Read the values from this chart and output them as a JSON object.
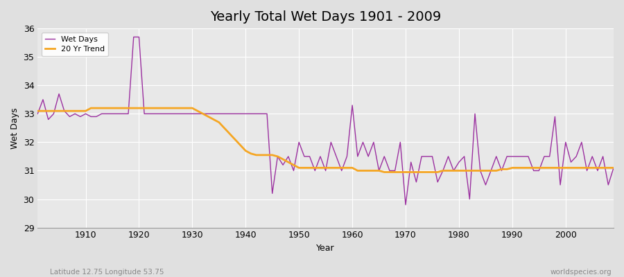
{
  "title": "Yearly Total Wet Days 1901 - 2009",
  "xlabel": "Year",
  "ylabel": "Wet Days",
  "ylim": [
    29,
    36
  ],
  "xlim": [
    1901,
    2009
  ],
  "yticks": [
    29,
    30,
    31,
    32,
    33,
    34,
    35,
    36
  ],
  "xticks": [
    1910,
    1920,
    1930,
    1940,
    1950,
    1960,
    1970,
    1980,
    1990,
    2000
  ],
  "background_color": "#e0e0e0",
  "plot_bg_color": "#e8e8e8",
  "wet_days_color": "#9b30a0",
  "trend_color": "#f5a623",
  "title_fontsize": 14,
  "axis_fontsize": 9,
  "bottom_left_text": "Latitude 12.75 Longitude 53.75",
  "bottom_right_text": "worldspecies.org",
  "years": [
    1901,
    1902,
    1903,
    1904,
    1905,
    1906,
    1907,
    1908,
    1909,
    1910,
    1911,
    1912,
    1913,
    1914,
    1915,
    1916,
    1917,
    1918,
    1919,
    1920,
    1921,
    1922,
    1923,
    1924,
    1925,
    1926,
    1927,
    1928,
    1929,
    1930,
    1931,
    1932,
    1933,
    1934,
    1935,
    1936,
    1937,
    1938,
    1939,
    1940,
    1941,
    1942,
    1943,
    1944,
    1945,
    1946,
    1947,
    1948,
    1949,
    1950,
    1951,
    1952,
    1953,
    1954,
    1955,
    1956,
    1957,
    1958,
    1959,
    1960,
    1961,
    1962,
    1963,
    1964,
    1965,
    1966,
    1967,
    1968,
    1969,
    1970,
    1971,
    1972,
    1973,
    1974,
    1975,
    1976,
    1977,
    1978,
    1979,
    1980,
    1981,
    1982,
    1983,
    1984,
    1985,
    1986,
    1987,
    1988,
    1989,
    1990,
    1991,
    1992,
    1993,
    1994,
    1995,
    1996,
    1997,
    1998,
    1999,
    2000,
    2001,
    2002,
    2003,
    2004,
    2005,
    2006,
    2007,
    2008,
    2009
  ],
  "wet_days": [
    33.0,
    33.5,
    32.8,
    33.0,
    33.7,
    33.1,
    32.9,
    33.0,
    32.9,
    33.0,
    32.9,
    32.9,
    33.0,
    33.0,
    33.0,
    33.0,
    33.0,
    33.0,
    35.7,
    35.7,
    33.0,
    33.0,
    33.0,
    33.0,
    33.0,
    33.0,
    33.0,
    33.0,
    33.0,
    33.0,
    33.0,
    33.0,
    33.0,
    33.0,
    33.0,
    33.0,
    33.0,
    33.0,
    33.0,
    33.0,
    33.0,
    33.0,
    33.0,
    33.0,
    30.2,
    31.5,
    31.2,
    31.5,
    31.0,
    32.0,
    31.5,
    31.5,
    31.0,
    31.5,
    31.0,
    32.0,
    31.5,
    31.0,
    31.5,
    33.3,
    31.5,
    32.0,
    31.5,
    32.0,
    31.0,
    31.5,
    31.0,
    31.0,
    32.0,
    29.8,
    31.3,
    30.6,
    31.5,
    31.5,
    31.5,
    30.6,
    31.0,
    31.5,
    31.0,
    31.3,
    31.5,
    30.0,
    33.0,
    31.0,
    30.5,
    31.0,
    31.5,
    31.0,
    31.5,
    31.5,
    31.5,
    31.5,
    31.5,
    31.0,
    31.0,
    31.5,
    31.5,
    32.9,
    30.5,
    32.0,
    31.3,
    31.5,
    32.0,
    31.0,
    31.5,
    31.0,
    31.5,
    30.5,
    31.1
  ],
  "trend_data": [
    [
      1901,
      33.1
    ],
    [
      1902,
      33.1
    ],
    [
      1903,
      33.1
    ],
    [
      1904,
      33.1
    ],
    [
      1905,
      33.1
    ],
    [
      1906,
      33.1
    ],
    [
      1907,
      33.1
    ],
    [
      1908,
      33.1
    ],
    [
      1909,
      33.1
    ],
    [
      1910,
      33.1
    ],
    [
      1911,
      33.2
    ],
    [
      1912,
      33.2
    ],
    [
      1913,
      33.2
    ],
    [
      1914,
      33.2
    ],
    [
      1915,
      33.2
    ],
    [
      1916,
      33.2
    ],
    [
      1917,
      33.2
    ],
    [
      1918,
      33.2
    ],
    [
      1919,
      33.2
    ],
    [
      1920,
      33.2
    ],
    [
      1921,
      33.2
    ],
    [
      1922,
      33.2
    ],
    [
      1923,
      33.2
    ],
    [
      1924,
      33.2
    ],
    [
      1925,
      33.2
    ],
    [
      1926,
      33.2
    ],
    [
      1927,
      33.2
    ],
    [
      1928,
      33.2
    ],
    [
      1929,
      33.2
    ],
    [
      1930,
      33.2
    ],
    [
      1931,
      33.1
    ],
    [
      1932,
      33.0
    ],
    [
      1933,
      32.9
    ],
    [
      1934,
      32.8
    ],
    [
      1935,
      32.7
    ],
    [
      1936,
      32.5
    ],
    [
      1937,
      32.3
    ],
    [
      1938,
      32.1
    ],
    [
      1939,
      31.9
    ],
    [
      1940,
      31.7
    ],
    [
      1941,
      31.6
    ],
    [
      1942,
      31.55
    ],
    [
      1943,
      31.55
    ],
    [
      1944,
      31.55
    ],
    [
      1945,
      31.55
    ],
    [
      1946,
      31.5
    ],
    [
      1947,
      31.4
    ],
    [
      1948,
      31.3
    ],
    [
      1949,
      31.2
    ],
    [
      1950,
      31.1
    ],
    [
      1951,
      31.1
    ],
    [
      1952,
      31.1
    ],
    [
      1953,
      31.1
    ],
    [
      1954,
      31.1
    ],
    [
      1955,
      31.1
    ],
    [
      1956,
      31.1
    ],
    [
      1957,
      31.1
    ],
    [
      1958,
      31.1
    ],
    [
      1959,
      31.1
    ],
    [
      1960,
      31.1
    ],
    [
      1961,
      31.0
    ],
    [
      1962,
      31.0
    ],
    [
      1963,
      31.0
    ],
    [
      1964,
      31.0
    ],
    [
      1965,
      31.0
    ],
    [
      1966,
      30.95
    ],
    [
      1967,
      30.95
    ],
    [
      1968,
      30.95
    ],
    [
      1969,
      30.95
    ],
    [
      1970,
      30.95
    ],
    [
      1971,
      30.95
    ],
    [
      1972,
      30.95
    ],
    [
      1973,
      30.95
    ],
    [
      1974,
      30.95
    ],
    [
      1975,
      30.95
    ],
    [
      1976,
      30.95
    ],
    [
      1977,
      31.0
    ],
    [
      1978,
      31.0
    ],
    [
      1979,
      31.0
    ],
    [
      1980,
      31.0
    ],
    [
      1981,
      31.0
    ],
    [
      1982,
      31.0
    ],
    [
      1983,
      31.0
    ],
    [
      1984,
      31.0
    ],
    [
      1985,
      31.0
    ],
    [
      1986,
      31.0
    ],
    [
      1987,
      31.0
    ],
    [
      1988,
      31.05
    ],
    [
      1989,
      31.05
    ],
    [
      1990,
      31.1
    ],
    [
      1991,
      31.1
    ],
    [
      1992,
      31.1
    ],
    [
      1993,
      31.1
    ],
    [
      1994,
      31.1
    ],
    [
      1995,
      31.1
    ],
    [
      1996,
      31.1
    ],
    [
      1997,
      31.1
    ],
    [
      1998,
      31.1
    ],
    [
      1999,
      31.1
    ],
    [
      2000,
      31.1
    ],
    [
      2001,
      31.1
    ],
    [
      2002,
      31.1
    ],
    [
      2003,
      31.1
    ],
    [
      2004,
      31.1
    ],
    [
      2005,
      31.1
    ],
    [
      2006,
      31.1
    ],
    [
      2007,
      31.1
    ],
    [
      2008,
      31.1
    ],
    [
      2009,
      31.1
    ]
  ]
}
